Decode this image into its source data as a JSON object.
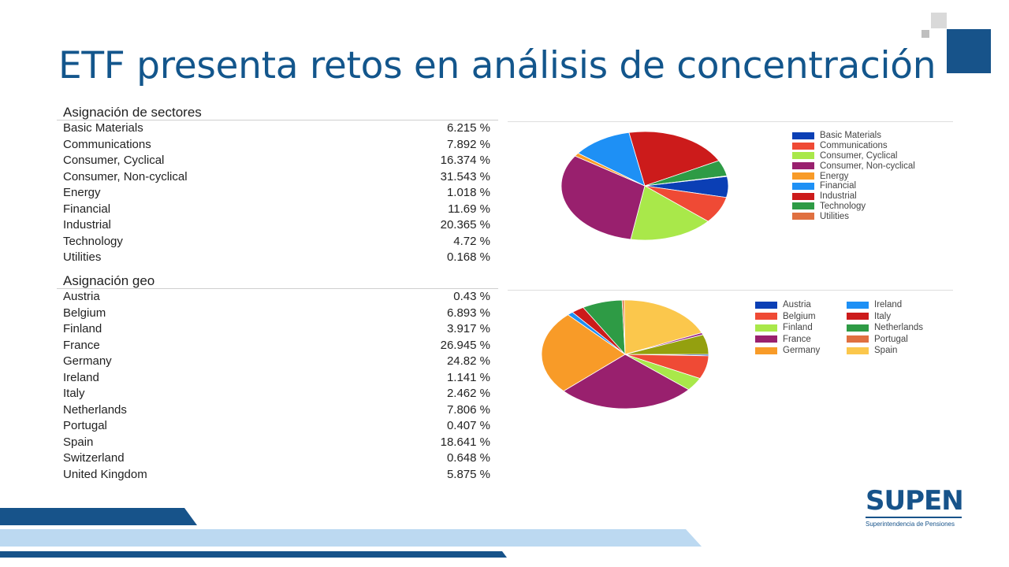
{
  "title": "ETF presenta retos en análisis de concentración",
  "colors": {
    "brand_blue": "#17538a",
    "title_blue": "#13568c",
    "light_blue": "#bcd9f1"
  },
  "logo": {
    "text": "SUPEN",
    "subtitle": "Superintendencia de Pensiones"
  },
  "chart_data": [
    {
      "type": "pie",
      "title": "Asignación de sectores",
      "labels": [
        "Basic Materials",
        "Communications",
        "Consumer, Cyclical",
        "Consumer, Non-cyclical",
        "Energy",
        "Financial",
        "Industrial",
        "Technology",
        "Utilities"
      ],
      "values": [
        6.215,
        7.892,
        16.374,
        31.543,
        1.018,
        11.69,
        20.365,
        4.72,
        0.168
      ],
      "display_values": [
        "6.215 %",
        "7.892 %",
        "16.374 %",
        "31.543 %",
        "1.018 %",
        "11.69 %",
        "20.365 %",
        "4.72 %",
        "0.168 %"
      ],
      "colors": [
        "#0b3fb5",
        "#ef4a35",
        "#a9e84a",
        "#99206e",
        "#f89b28",
        "#1e90f5",
        "#cc1b1b",
        "#2e9b45",
        "#e07040"
      ],
      "legend": "right"
    },
    {
      "type": "pie",
      "title": "Asignación geo",
      "labels": [
        "Austria",
        "Belgium",
        "Finland",
        "France",
        "Germany",
        "Ireland",
        "Italy",
        "Netherlands",
        "Portugal",
        "Spain",
        "Switzerland",
        "United Kingdom"
      ],
      "values": [
        0.43,
        6.893,
        3.917,
        26.945,
        24.82,
        1.141,
        2.462,
        7.806,
        0.407,
        18.641,
        0.648,
        5.875
      ],
      "display_values": [
        "0.43 %",
        "6.893 %",
        "3.917 %",
        "26.945 %",
        "24.82 %",
        "1.141 %",
        "2.462 %",
        "7.806 %",
        "0.407 %",
        "18.641 %",
        "0.648 %",
        "5.875 %"
      ],
      "colors": [
        "#0b3fb5",
        "#ef4a35",
        "#a9e84a",
        "#99206e",
        "#f89b28",
        "#1e90f5",
        "#cc1b1b",
        "#2e9b45",
        "#e07040",
        "#fbc74c",
        "#9b2a8a",
        "#94a00f"
      ],
      "legend_labels": [
        "Austria",
        "Ireland",
        "Belgium",
        "Italy",
        "Finland",
        "Netherlands",
        "France",
        "Portugal",
        "Germany",
        "Spain"
      ],
      "legend_colors": [
        "#0b3fb5",
        "#1e90f5",
        "#ef4a35",
        "#cc1b1b",
        "#a9e84a",
        "#2e9b45",
        "#99206e",
        "#e07040",
        "#f89b28",
        "#fbc74c"
      ],
      "legend": "right"
    }
  ]
}
